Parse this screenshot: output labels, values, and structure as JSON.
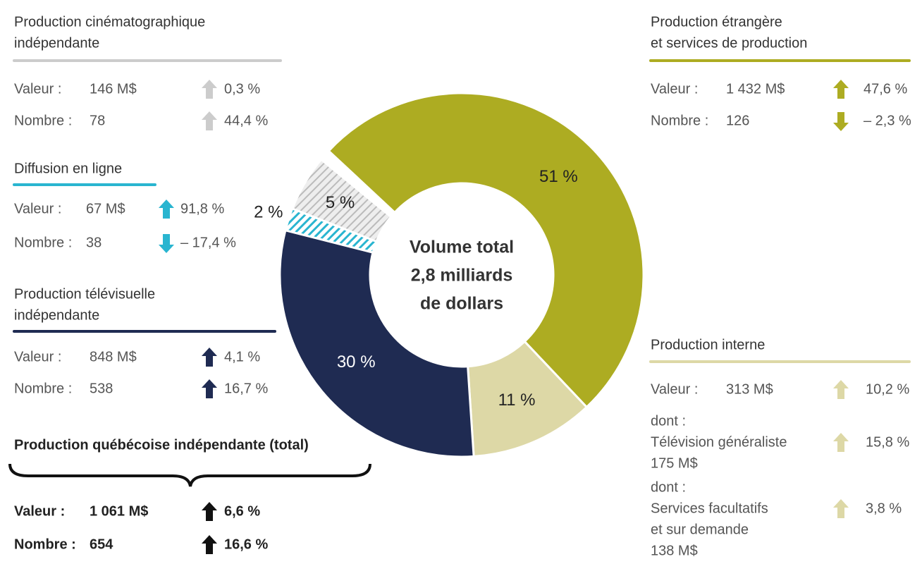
{
  "chart_data": {
    "type": "donut",
    "values": [
      51,
      11,
      30,
      2,
      5
    ],
    "value_labels": [
      "51 %",
      "11 %",
      "30 %",
      "2 %",
      "5 %"
    ],
    "colors": [
      "#adac22",
      "#ddd8a6",
      "#1f2b52",
      "#29b5d0",
      "#c8c8c8"
    ],
    "hatched": [
      false,
      false,
      false,
      true,
      true
    ],
    "center_lines": [
      "Volume total",
      "2,8 milliards",
      "de dollars"
    ]
  },
  "panels": [
    {
      "title_lines": [
        "Production cinématographique",
        "indépendante"
      ],
      "color": "#cccccc",
      "rows": [
        {
          "label": "Valeur :",
          "value": "146 M$",
          "direction": "up",
          "change": "0,3 %"
        },
        {
          "label": "Nombre :",
          "value": "78",
          "direction": "up",
          "change": "44,4 %"
        }
      ]
    },
    {
      "title_lines": [
        "Diffusion en ligne"
      ],
      "color": "#29b5d0",
      "rows": [
        {
          "label": "Valeur :",
          "value": "67 M$",
          "direction": "up",
          "change": "91,8 %"
        },
        {
          "label": "Nombre :",
          "value": "38",
          "direction": "down",
          "change": "– 17,4 %"
        }
      ]
    },
    {
      "title_lines": [
        "Production télévisuelle",
        "indépendante"
      ],
      "color": "#1f2b52",
      "rows": [
        {
          "label": "Valeur :",
          "value": "848 M$",
          "direction": "up",
          "change": "4,1 %"
        },
        {
          "label": "Nombre :",
          "value": "538",
          "direction": "up",
          "change": "16,7 %"
        }
      ]
    },
    {
      "title_lines": [
        "Production québécoise indépendante (total)"
      ],
      "color": "#111111",
      "rows": [
        {
          "label": "Valeur :",
          "value": "1 061 M$",
          "direction": "up",
          "change": "6,6 %"
        },
        {
          "label": "Nombre :",
          "value": "654",
          "direction": "up",
          "change": "16,6 %"
        }
      ]
    },
    {
      "title_lines": [
        "Production étrangère",
        "et services de production"
      ],
      "color": "#adac22",
      "rows": [
        {
          "label": "Valeur :",
          "value": "1 432 M$",
          "direction": "up",
          "change": "47,6 %"
        },
        {
          "label": "Nombre :",
          "value": "126",
          "direction": "down",
          "change": "– 2,3 %"
        }
      ]
    },
    {
      "title_lines": [
        "Production interne"
      ],
      "color": "#ddd8a6",
      "rows": [
        {
          "label": "Valeur :",
          "value": "313 M$",
          "direction": "up",
          "change": "10,2 %"
        },
        {
          "lines": [
            "dont :",
            "Télévision généraliste",
            "175 M$"
          ],
          "direction": "up",
          "change": "15,8 %"
        },
        {
          "lines": [
            "dont :",
            "Services facultatifs",
            "et sur demande",
            "138 M$"
          ],
          "direction": "up",
          "change": "3,8 %"
        }
      ]
    }
  ]
}
